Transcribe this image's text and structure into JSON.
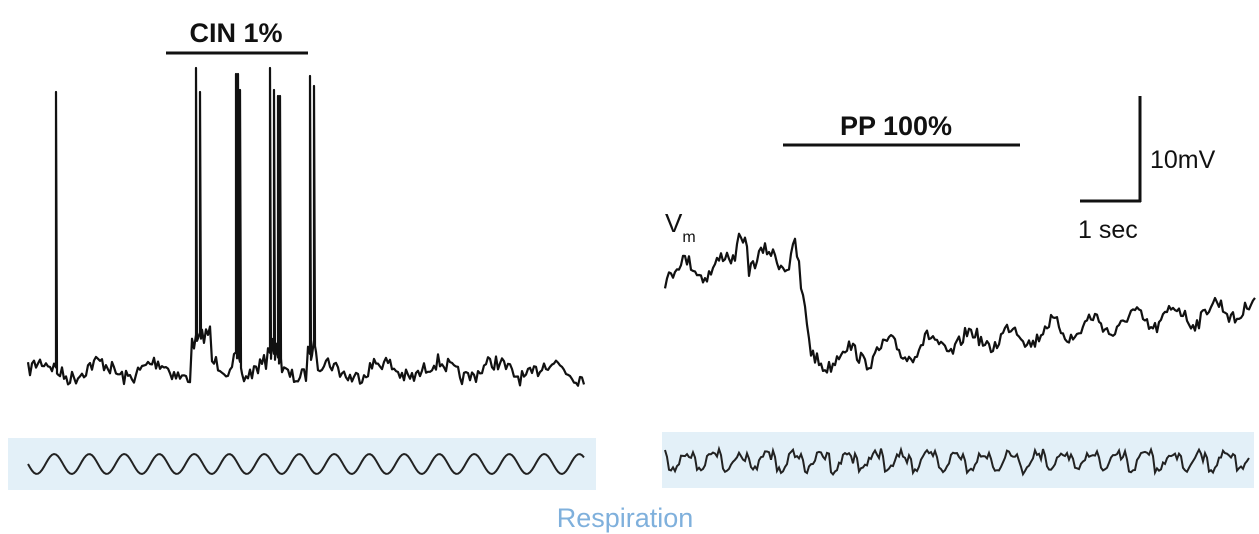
{
  "left_panel": {
    "stimulus_label": "CIN 1%"
  },
  "right_panel": {
    "stimulus_label": "PP 100%",
    "trace_label_main": "V",
    "trace_label_sub": "m"
  },
  "scale_bar": {
    "voltage_label": "10mV",
    "time_label": "1 sec"
  },
  "respiration_label": "Respiration",
  "colors": {
    "trace": "#111111",
    "respiration_band": "#e3f0f8",
    "respiration_label": "#7fb0dc"
  }
}
